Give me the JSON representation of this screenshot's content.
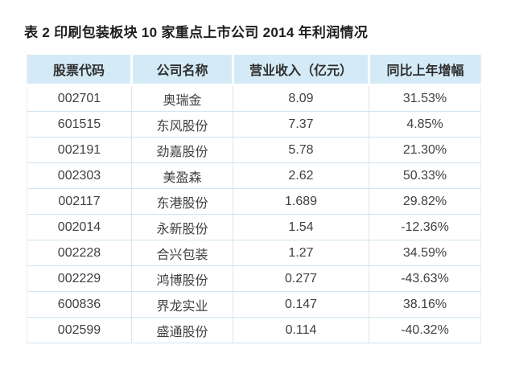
{
  "colors": {
    "page_bg": "#ffffff",
    "header_bg": "#d4ebf7",
    "row_divider": "#cfe5f0",
    "column_divider": "#e3e3e3",
    "outer_border": "#ececec",
    "title_text": "#1e1e1e",
    "header_text": "#2f2f2f",
    "body_text": "#404040"
  },
  "chart_data": {
    "type": "table",
    "title": "表 2 印刷包装板块 10 家重点上市公司 2014 年利润情况",
    "columns": [
      "股票代码",
      "公司名称",
      "营业收入（亿元）",
      "同比上年增幅"
    ],
    "rows": [
      {
        "code": "002701",
        "name": "奥瑞金",
        "revenue": "8.09",
        "growth": "31.53%"
      },
      {
        "code": "601515",
        "name": "东风股份",
        "revenue": "7.37",
        "growth": "4.85%"
      },
      {
        "code": "002191",
        "name": "劲嘉股份",
        "revenue": "5.78",
        "growth": "21.30%"
      },
      {
        "code": "002303",
        "name": "美盈森",
        "revenue": "2.62",
        "growth": "50.33%"
      },
      {
        "code": "002117",
        "name": "东港股份",
        "revenue": "1.689",
        "growth": "29.82%"
      },
      {
        "code": "002014",
        "name": "永新股份",
        "revenue": "1.54",
        "growth": "-12.36%"
      },
      {
        "code": "002228",
        "name": "合兴包装",
        "revenue": "1.27",
        "growth": "34.59%"
      },
      {
        "code": "002229",
        "name": "鸿博股份",
        "revenue": "0.277",
        "growth": "-43.63%"
      },
      {
        "code": "600836",
        "name": "界龙实业",
        "revenue": "0.147",
        "growth": "38.16%"
      },
      {
        "code": "002599",
        "name": "盛通股份",
        "revenue": "0.114",
        "growth": "-40.32%"
      }
    ],
    "revenue_values": [
      8.09,
      7.37,
      5.78,
      2.62,
      1.689,
      1.54,
      1.27,
      0.277,
      0.147,
      0.114
    ],
    "growth_pct_values": [
      31.53,
      4.85,
      21.3,
      50.33,
      29.82,
      -12.36,
      34.59,
      -43.63,
      38.16,
      -40.32
    ]
  }
}
